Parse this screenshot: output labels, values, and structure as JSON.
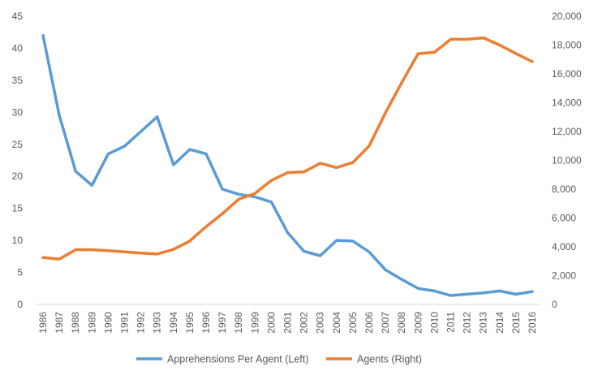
{
  "chart_data": {
    "type": "line",
    "title": "",
    "x": [
      "1986",
      "1987",
      "1988",
      "1989",
      "1990",
      "1991",
      "1992",
      "1993",
      "1994",
      "1995",
      "1996",
      "1997",
      "1998",
      "1999",
      "2000",
      "2001",
      "2002",
      "2003",
      "2004",
      "2005",
      "2006",
      "2007",
      "2008",
      "2009",
      "2010",
      "2011",
      "2012",
      "2013",
      "2014",
      "2015",
      "2016"
    ],
    "y_left": {
      "range": [
        0,
        45
      ],
      "ticks": [
        0,
        5,
        10,
        15,
        20,
        25,
        30,
        35,
        40,
        45
      ]
    },
    "y_right": {
      "range": [
        0,
        20000
      ],
      "ticks": [
        "0",
        "2,000",
        "4,000",
        "6,000",
        "8,000",
        "10,000",
        "12,000",
        "14,000",
        "16,000",
        "18,000",
        "20,000"
      ]
    },
    "grid": false,
    "legend_position": "bottom",
    "series": [
      {
        "name": "Apprehensions Per Agent (Left)",
        "axis": "left",
        "color": "#5B9BD5",
        "values": [
          42.0,
          29.5,
          20.8,
          18.6,
          23.5,
          24.7,
          27.0,
          29.3,
          21.8,
          24.2,
          23.5,
          18.0,
          17.2,
          16.8,
          16.0,
          11.2,
          8.3,
          7.6,
          10.0,
          9.9,
          8.2,
          5.4,
          3.9,
          2.5,
          2.1,
          1.4,
          1.6,
          1.8,
          2.1,
          1.6,
          2.0
        ]
      },
      {
        "name": "Agents (Right)",
        "axis": "right",
        "color": "#ED7D31",
        "values": [
          3250,
          3150,
          3800,
          3800,
          3730,
          3650,
          3560,
          3500,
          3820,
          4400,
          5400,
          6300,
          7300,
          7700,
          8600,
          9150,
          9200,
          9800,
          9500,
          9850,
          11000,
          13300,
          15400,
          17400,
          17500,
          18400,
          18400,
          18500,
          18000,
          17400,
          16850
        ]
      }
    ]
  }
}
